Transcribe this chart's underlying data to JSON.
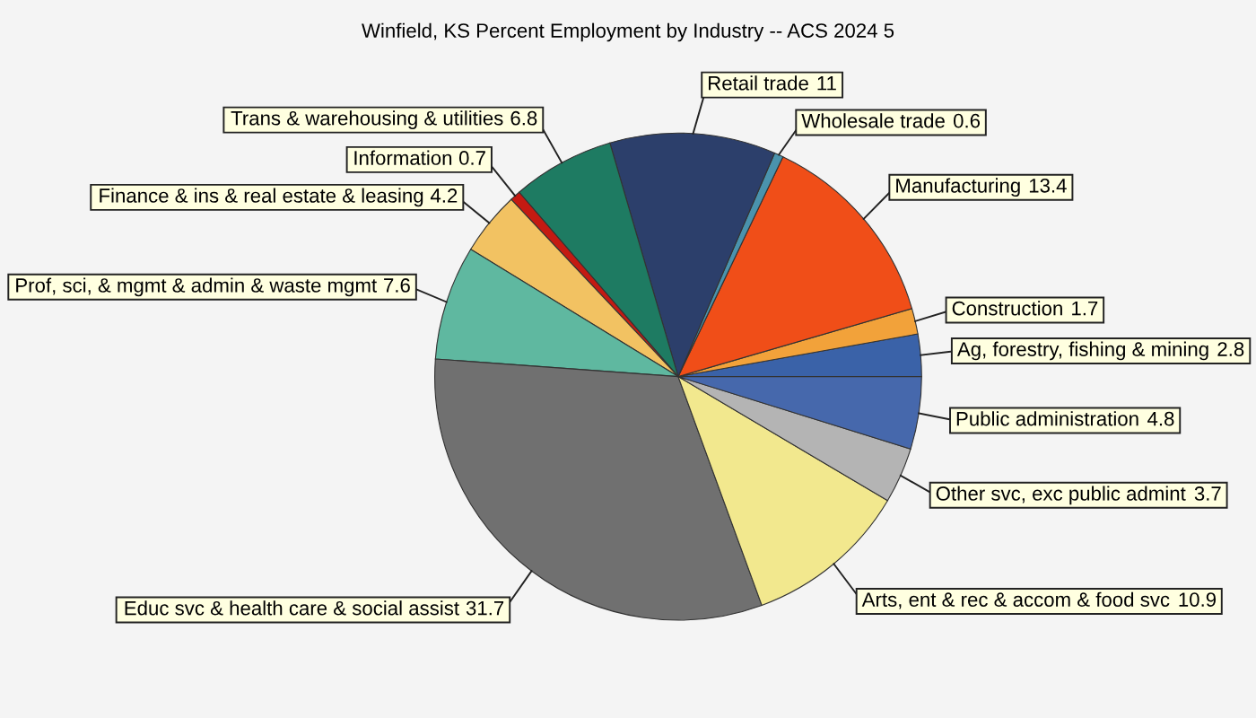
{
  "chart_data": {
    "type": "pie",
    "title": "Winfield, KS Percent Employment by Industry -- ACS 2024 5",
    "categories": [
      "Ag, forestry, fishing & mining",
      "Construction",
      "Manufacturing",
      "Wholesale trade",
      "Retail trade",
      "Trans & warehousing & utilities",
      "Information",
      "Finance & ins & real estate & leasing",
      "Prof, sci, & mgmt & admin & waste mgmt",
      "Educ svc & health care & social assist",
      "Arts, ent & rec & accom & food svc",
      "Other svc, exc public admint",
      "Public administration"
    ],
    "values": [
      2.8,
      1.7,
      13.4,
      0.6,
      11,
      6.8,
      0.7,
      4.2,
      7.6,
      31.7,
      10.9,
      3.7,
      4.8
    ],
    "colors": [
      "#3a62a8",
      "#f2a23a",
      "#f04e18",
      "#4a93ad",
      "#2c3f6b",
      "#1e7b62",
      "#c41a12",
      "#f2c262",
      "#5fb8a0",
      "#707070",
      "#f2e88e",
      "#b4b4b4",
      "#4668ac"
    ],
    "data_labels": true
  }
}
